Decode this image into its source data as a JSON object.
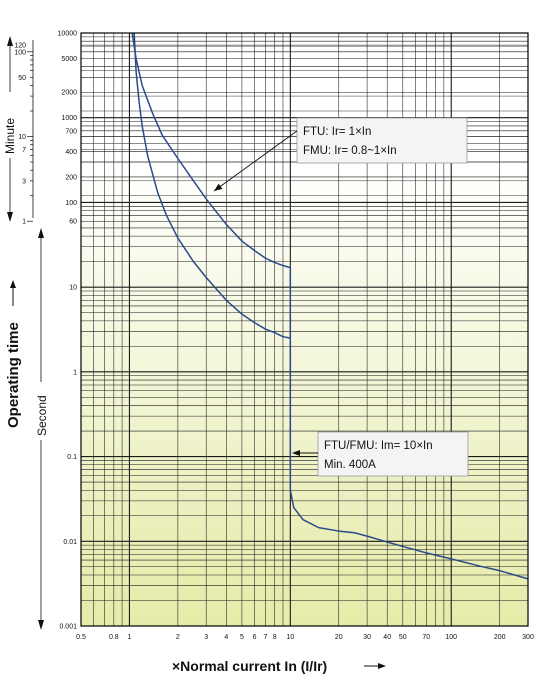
{
  "chart_data": {
    "type": "line",
    "title": "",
    "xlabel": "×Normal current In (I/Ir)",
    "ylabel": "Operating time",
    "xscale": "log",
    "yscale": "log",
    "xlim": [
      0.5,
      300
    ],
    "ylim": [
      0.001,
      10000
    ],
    "grid": true,
    "x_tick_labels": [
      "0.5",
      "0.8",
      "1",
      "2",
      "3",
      "4",
      "5",
      "6",
      "7",
      "8",
      "10",
      "20",
      "30",
      "40",
      "50",
      "70",
      "100",
      "200",
      "300"
    ],
    "x_tick_values": [
      0.5,
      0.8,
      1,
      2,
      3,
      4,
      5,
      6,
      7,
      8,
      10,
      20,
      30,
      40,
      50,
      70,
      100,
      200,
      300
    ],
    "y_tick_labels_seconds": [
      "10000",
      "5000",
      "2000",
      "1000",
      "700",
      "400",
      "200",
      "100",
      "60",
      "10",
      "1",
      "0.1",
      "0.01",
      "0.001"
    ],
    "y_tick_values_seconds": [
      10000,
      5000,
      2000,
      1000,
      700,
      400,
      200,
      100,
      60,
      10,
      1,
      0.1,
      0.01,
      0.001
    ],
    "y_tick_labels_minutes": [
      "120",
      "100",
      "50",
      "10",
      "7",
      "3",
      "1"
    ],
    "y_tick_values_minutes": [
      120,
      100,
      50,
      10,
      7,
      3,
      1
    ],
    "unit_label_minute": "Minute",
    "unit_label_second": "Second",
    "series": [
      {
        "x": [
          1.04,
          1.1,
          1.2,
          1.4,
          1.6,
          2,
          2.5,
          3,
          4,
          5,
          6,
          7,
          8,
          9,
          10,
          10,
          10,
          10.5,
          12,
          15,
          20,
          25,
          30,
          40,
          50,
          70,
          100,
          150,
          200,
          300
        ],
        "y": [
          10000,
          5000,
          2400,
          1100,
          620,
          330,
          180,
          110,
          55,
          35,
          27,
          22,
          19.5,
          18,
          17,
          1,
          0.04,
          0.025,
          0.018,
          0.0145,
          0.0132,
          0.0126,
          0.0115,
          0.0098,
          0.0087,
          0.0073,
          0.0062,
          0.0051,
          0.0045,
          0.0036
        ]
      },
      {
        "x": [
          1.07,
          1.1,
          1.15,
          1.2,
          1.3,
          1.5,
          1.7,
          2,
          2.5,
          3,
          4,
          5,
          6,
          7,
          8,
          9,
          10
        ],
        "y": [
          10000,
          3500,
          1500,
          800,
          350,
          130,
          70,
          38,
          20,
          13,
          7,
          4.8,
          3.8,
          3.2,
          2.9,
          2.6,
          2.5
        ]
      }
    ],
    "annotations": [
      {
        "lines": [
          "FTU: Ir= 1×In",
          "FMU: Ir= 0.8~1×In"
        ],
        "arrow_to": [
          3.2,
          140
        ]
      },
      {
        "lines": [
          "FTU/FMU: Im= 10×In",
          "Min. 400A"
        ],
        "arrow_to": [
          10,
          0.1
        ]
      }
    ],
    "colors": {
      "curve": "#2c4a8a",
      "grid": "#1a1a1a",
      "gradient_top": "#ffffff",
      "gradient_bottom": "#e6ecb0"
    }
  }
}
